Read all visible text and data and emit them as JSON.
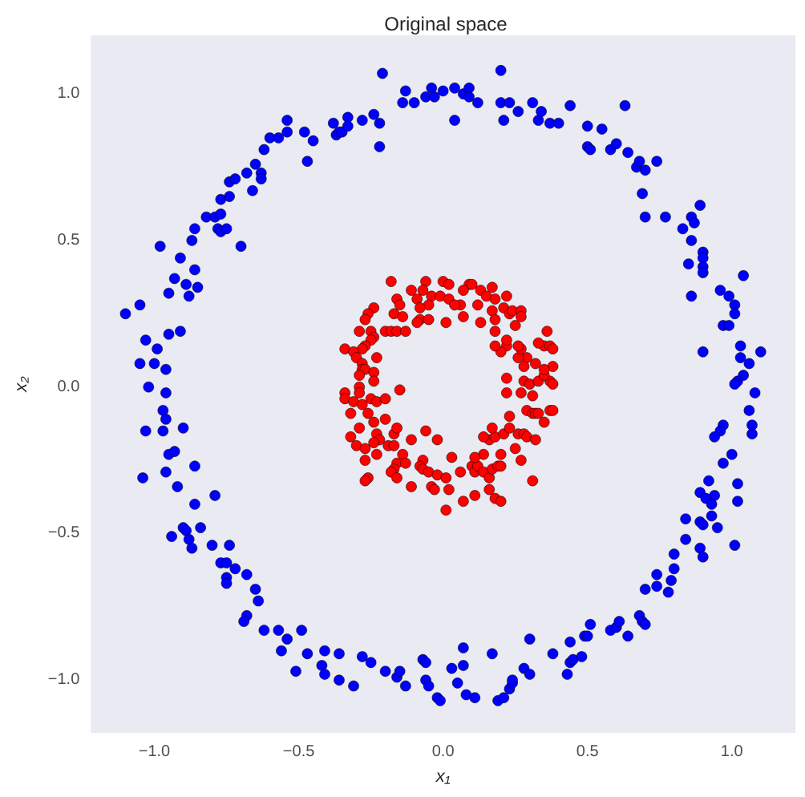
{
  "chart_data": {
    "type": "scatter",
    "title": "Original space",
    "xlabel": "x₁",
    "ylabel": "x₂",
    "xlim": [
      -1.22,
      1.22
    ],
    "ylim": [
      -1.18,
      1.2
    ],
    "xticks": [
      {
        "value": -1,
        "label": "−1.0"
      },
      {
        "value": -0.5,
        "label": "−0.5"
      },
      {
        "value": 0,
        "label": "0.0"
      },
      {
        "value": 0.5,
        "label": "0.5"
      },
      {
        "value": 1,
        "label": "1.0"
      }
    ],
    "yticks": [
      {
        "value": -1,
        "label": "−1.0"
      },
      {
        "value": -0.5,
        "label": "−0.5"
      },
      {
        "value": 0,
        "label": "0.0"
      },
      {
        "value": 0.5,
        "label": "0.5"
      },
      {
        "value": 1,
        "label": "1.0"
      }
    ],
    "grid": false,
    "marker": "circle",
    "series": [
      {
        "color": "#0000ff",
        "x": [
          -0.98,
          -0.91,
          -0.87,
          -0.86,
          -0.82,
          -0.79,
          -0.77,
          -0.78,
          -0.77,
          -0.75,
          -0.77,
          -0.74,
          -0.74,
          -0.72,
          -0.7,
          -0.68,
          -0.66,
          -0.65,
          -0.63,
          -0.63,
          -0.62,
          -0.6,
          -0.57,
          -0.54,
          -0.54,
          -0.48,
          -0.47,
          -0.45,
          -0.38,
          -0.37,
          -0.36,
          -0.35,
          -0.33,
          -0.33,
          -0.28,
          -0.24,
          -0.22,
          -0.22,
          -0.21,
          -0.14,
          -0.13,
          -0.1,
          -0.06,
          -0.04,
          -0.03,
          0.0,
          0.04,
          0.04,
          0.07,
          0.09,
          0.09,
          0.12,
          0.2,
          0.2,
          0.21,
          0.23,
          0.26,
          0.31,
          0.33,
          0.34,
          0.37,
          0.4,
          0.44,
          0.5,
          0.5,
          0.51,
          0.55,
          0.58,
          0.6,
          0.63,
          0.64,
          0.67,
          0.68,
          0.69,
          0.7,
          0.7,
          0.74,
          0.77,
          0.83,
          0.86,
          0.86,
          0.87,
          0.89,
          0.9,
          -0.86,
          -0.93,
          -0.89,
          -0.85,
          -0.95,
          -0.88,
          -1.1,
          -1.05,
          -0.91,
          -1.03,
          -0.99,
          -0.95,
          -1.05,
          -1.0,
          -0.96,
          -1.02,
          -0.96,
          -0.97,
          -0.96,
          -1.03,
          -0.97,
          -0.9,
          -0.95,
          -0.93,
          -0.96,
          -1.04,
          -0.86,
          -0.92,
          -0.79,
          -0.86,
          -0.9,
          -0.89,
          -0.84,
          -0.94,
          -0.88,
          -0.87,
          -0.8,
          -0.74,
          -0.77,
          -0.75,
          -0.72,
          -0.75,
          -0.75,
          -0.68,
          -0.65,
          -0.64,
          -0.68,
          -0.69,
          -0.62,
          -0.57,
          -0.49,
          -0.54,
          -0.56,
          -0.47,
          -0.51,
          -0.41,
          -0.42,
          -0.41,
          -0.36,
          -0.36,
          -0.31,
          -0.28,
          -0.25,
          -0.2,
          -0.16,
          -0.15,
          -0.13,
          -0.07,
          -0.06,
          -0.06,
          -0.05,
          -0.02,
          -0.01,
          0.03,
          0.05,
          0.07,
          0.07,
          0.08,
          0.11,
          0.17,
          0.19,
          0.21,
          0.23,
          0.24,
          0.24,
          0.28,
          0.3,
          0.3,
          0.38,
          0.43,
          0.44,
          0.44,
          0.45,
          0.48,
          0.49,
          0.5,
          0.51,
          0.58,
          0.6,
          0.61,
          0.64,
          0.68,
          0.69,
          0.7,
          0.7,
          0.74,
          0.74,
          0.78,
          0.79,
          0.8,
          0.8,
          0.84,
          0.89,
          0.9,
          1.01,
          0.9,
          0.85,
          0.9,
          0.9,
          1.04,
          0.86,
          0.96,
          0.99,
          1.01,
          1.01,
          0.97,
          0.99,
          0.9,
          1.03,
          1.1,
          1.03,
          1.06,
          1.04,
          1.02,
          1.01,
          1.08,
          1.06,
          1.07,
          1.07,
          0.97,
          0.96,
          0.94,
          1.0,
          0.97,
          0.92,
          1.02,
          0.89,
          0.94,
          0.91,
          0.93,
          1.02,
          0.93,
          0.84,
          0.89,
          0.9,
          0.95
        ],
        "values": [
          0.48,
          0.44,
          0.5,
          0.54,
          0.58,
          0.58,
          0.59,
          0.54,
          0.53,
          0.54,
          0.64,
          0.65,
          0.7,
          0.71,
          0.48,
          0.73,
          0.67,
          0.76,
          0.73,
          0.71,
          0.81,
          0.85,
          0.85,
          0.87,
          0.91,
          0.87,
          0.77,
          0.84,
          0.9,
          0.86,
          0.87,
          0.87,
          0.92,
          0.89,
          0.91,
          0.93,
          0.9,
          0.82,
          1.07,
          0.97,
          1.01,
          0.97,
          0.99,
          1.02,
          0.99,
          1.01,
          0.91,
          1.02,
          1.0,
          1.02,
          0.99,
          0.97,
          1.08,
          0.97,
          0.91,
          0.97,
          0.94,
          0.97,
          0.91,
          0.94,
          0.9,
          0.9,
          0.96,
          0.89,
          0.82,
          0.81,
          0.88,
          0.81,
          0.83,
          0.96,
          0.8,
          0.75,
          0.77,
          0.66,
          0.58,
          0.74,
          0.77,
          0.58,
          0.54,
          0.5,
          0.58,
          0.56,
          0.62,
          0.46,
          0.4,
          0.37,
          0.35,
          0.34,
          0.32,
          0.31,
          0.25,
          0.28,
          0.19,
          0.16,
          0.13,
          0.18,
          0.08,
          0.08,
          0.06,
          0.0,
          -0.02,
          -0.08,
          -0.11,
          -0.15,
          -0.15,
          -0.14,
          -0.23,
          -0.22,
          -0.29,
          -0.31,
          -0.27,
          -0.34,
          -0.37,
          -0.4,
          -0.48,
          -0.49,
          -0.48,
          -0.51,
          -0.52,
          -0.55,
          -0.54,
          -0.54,
          -0.6,
          -0.6,
          -0.62,
          -0.65,
          -0.67,
          -0.64,
          -0.69,
          -0.73,
          -0.78,
          -0.8,
          -0.83,
          -0.83,
          -0.83,
          -0.86,
          -0.9,
          -0.91,
          -0.97,
          -0.9,
          -0.95,
          -0.98,
          -0.91,
          -1.0,
          -1.02,
          -0.92,
          -0.94,
          -0.97,
          -0.99,
          -0.97,
          -1.02,
          -0.93,
          -0.94,
          -1.0,
          -1.02,
          -1.06,
          -1.07,
          -0.96,
          -1.01,
          -0.89,
          -0.95,
          -1.05,
          -1.06,
          -0.91,
          -1.07,
          -1.06,
          -1.03,
          -1.01,
          -1.0,
          -0.96,
          -0.98,
          -0.86,
          -0.91,
          -0.98,
          -0.87,
          -0.94,
          -0.93,
          -0.92,
          -0.85,
          -0.85,
          -0.81,
          -0.83,
          -0.82,
          -0.8,
          -0.85,
          -0.78,
          -0.8,
          -0.81,
          -0.69,
          -0.68,
          -0.64,
          -0.7,
          -0.66,
          -0.62,
          -0.57,
          -0.52,
          -0.55,
          -0.58,
          -0.54,
          0.44,
          0.42,
          0.41,
          0.39,
          0.38,
          0.31,
          0.33,
          0.31,
          0.28,
          0.25,
          0.21,
          0.21,
          0.12,
          0.14,
          0.12,
          0.1,
          0.08,
          0.04,
          0.02,
          0.01,
          -0.02,
          -0.08,
          -0.13,
          -0.16,
          -0.13,
          -0.15,
          -0.17,
          -0.23,
          -0.26,
          -0.32,
          -0.33,
          -0.36,
          -0.37,
          -0.38,
          -0.4,
          -0.39,
          -0.44,
          -0.45,
          -0.46,
          -0.47,
          -0.48
        ]
      },
      {
        "color": "#ff0000",
        "x": [
          -0.18,
          -0.06,
          0.0,
          0.02,
          0.09,
          0.1,
          0.17,
          -0.11,
          -0.07,
          -0.04,
          -0.01,
          0.07,
          0.13,
          0.15,
          0.18,
          0.22,
          -0.16,
          -0.09,
          0.02,
          0.06,
          0.12,
          -0.15,
          -0.05,
          -0.24,
          -0.26,
          -0.27,
          -0.17,
          -0.08,
          0.04,
          0.07,
          0.17,
          0.21,
          0.23,
          0.24,
          0.27,
          0.27,
          0.25,
          -0.14,
          -0.08,
          -0.05,
          0.01,
          0.13,
          0.18,
          0.18,
          -0.29,
          -0.25,
          -0.2,
          -0.18,
          -0.16,
          -0.13,
          -0.09,
          -0.24,
          -0.25,
          -0.27,
          -0.28,
          -0.34,
          -0.31,
          -0.23,
          -0.3,
          -0.28,
          -0.28,
          -0.27,
          -0.29,
          -0.24,
          -0.24,
          -0.29,
          -0.34,
          -0.29,
          -0.34,
          -0.31,
          -0.28,
          -0.25,
          -0.23,
          -0.2,
          -0.32,
          -0.26,
          -0.15,
          -0.2,
          -0.24,
          -0.29,
          -0.32,
          -0.23,
          -0.17,
          -0.16,
          -0.22,
          -0.3,
          -0.27,
          -0.24,
          -0.19,
          -0.17,
          -0.11,
          -0.06,
          -0.02,
          -0.27,
          -0.23,
          -0.14,
          -0.16,
          -0.13,
          -0.17,
          -0.18,
          -0.16,
          -0.26,
          -0.27,
          -0.11,
          -0.07,
          -0.08,
          -0.07,
          -0.05,
          -0.02,
          0.01,
          0.03,
          0.06,
          -0.04,
          -0.03,
          0.02,
          0.01,
          0.07,
          0.11,
          0.1,
          0.11,
          0.12,
          0.14,
          0.16,
          0.17,
          0.19,
          0.2,
          0.2,
          0.14,
          0.11,
          0.16,
          0.18,
          0.21,
          0.14,
          0.17,
          0.23,
          0.25,
          0.27,
          0.31,
          0.16,
          0.18,
          0.2,
          0.26,
          0.28,
          0.29,
          0.32,
          0.23,
          0.29,
          0.31,
          0.32,
          0.33,
          0.35,
          0.37,
          0.38,
          0.27,
          0.31,
          0.22,
          0.22,
          0.28,
          0.3,
          0.33,
          0.37,
          0.38,
          0.35,
          0.38,
          0.35,
          0.32,
          0.29,
          0.26,
          0.28,
          0.35,
          0.37,
          0.38,
          0.33,
          0.36,
          0.27,
          0.26,
          0.22,
          0.2,
          0.18,
          0.22
        ],
        "values": [
          0.36,
          0.36,
          0.36,
          0.35,
          0.35,
          0.35,
          0.34,
          0.33,
          0.33,
          0.31,
          0.31,
          0.33,
          0.33,
          0.31,
          0.3,
          0.31,
          0.3,
          0.3,
          0.3,
          0.28,
          0.28,
          0.28,
          0.28,
          0.27,
          0.25,
          0.23,
          0.25,
          0.27,
          0.28,
          0.24,
          0.26,
          0.27,
          0.25,
          0.26,
          0.26,
          0.24,
          0.21,
          0.24,
          0.23,
          0.23,
          0.22,
          0.22,
          0.23,
          0.19,
          0.19,
          0.19,
          0.19,
          0.19,
          0.19,
          0.19,
          0.22,
          0.17,
          0.16,
          0.14,
          0.13,
          0.13,
          0.12,
          0.1,
          0.1,
          0.08,
          0.06,
          0.06,
          0.04,
          0.05,
          0.02,
          0.0,
          -0.02,
          -0.02,
          -0.04,
          -0.05,
          -0.06,
          -0.04,
          -0.05,
          -0.04,
          -0.09,
          -0.09,
          -0.01,
          -0.11,
          -0.12,
          -0.14,
          -0.17,
          -0.16,
          -0.16,
          -0.14,
          -0.18,
          -0.2,
          -0.21,
          -0.19,
          -0.2,
          -0.2,
          -0.18,
          -0.15,
          -0.18,
          -0.25,
          -0.23,
          -0.23,
          -0.26,
          -0.26,
          -0.28,
          -0.29,
          -0.31,
          -0.31,
          -0.32,
          -0.34,
          -0.25,
          -0.27,
          -0.28,
          -0.29,
          -0.3,
          -0.31,
          -0.24,
          -0.29,
          -0.34,
          -0.35,
          -0.35,
          -0.42,
          -0.39,
          -0.37,
          -0.27,
          -0.29,
          -0.27,
          -0.29,
          -0.31,
          -0.28,
          -0.27,
          -0.27,
          -0.23,
          -0.23,
          -0.24,
          -0.18,
          -0.17,
          -0.16,
          -0.17,
          -0.14,
          -0.1,
          -0.21,
          -0.25,
          -0.32,
          -0.35,
          -0.38,
          -0.39,
          -0.16,
          -0.16,
          -0.17,
          -0.18,
          -0.14,
          -0.08,
          -0.09,
          -0.09,
          -0.09,
          -0.12,
          -0.08,
          -0.08,
          -0.02,
          -0.03,
          -0.02,
          0.03,
          0.02,
          0.01,
          0.02,
          0.02,
          0.01,
          0.04,
          0.07,
          0.06,
          0.08,
          0.1,
          0.1,
          0.07,
          0.14,
          0.14,
          0.13,
          0.15,
          0.19,
          0.13,
          0.14,
          0.14,
          0.12,
          0.14,
          0.16
        ]
      }
    ]
  }
}
